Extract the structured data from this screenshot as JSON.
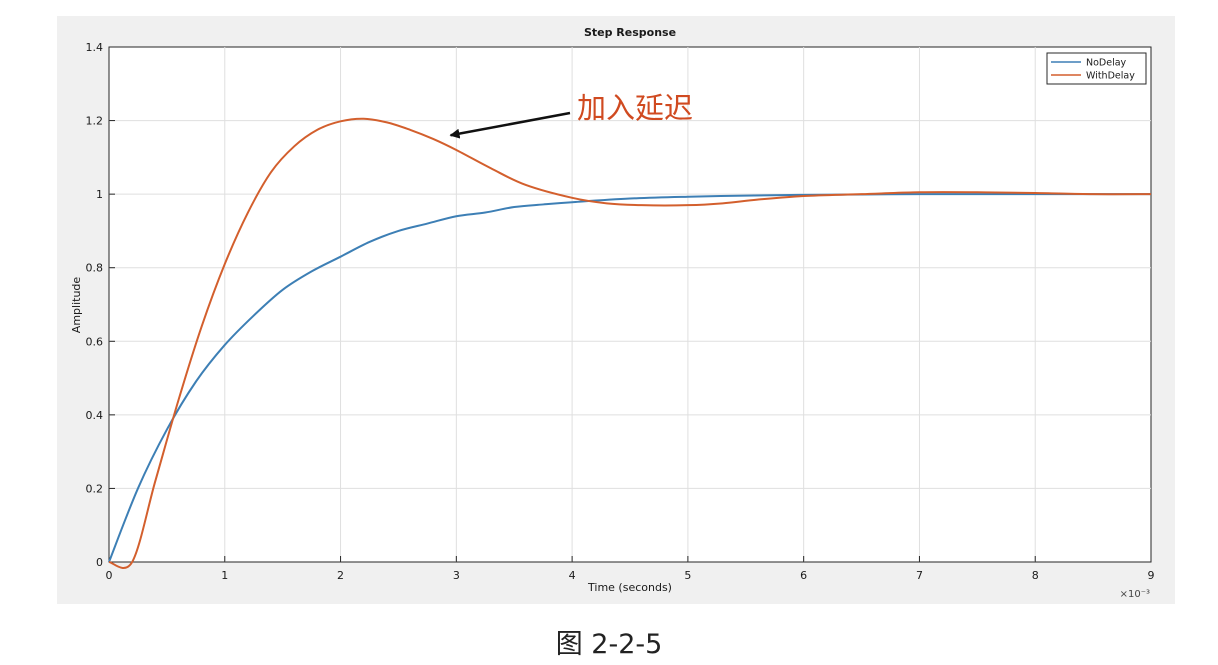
{
  "chart_data": {
    "type": "line",
    "title": "Step Response",
    "xlabel": "Time (seconds)",
    "ylabel": "Amplitude",
    "x_multiplier_label": "×10⁻³",
    "xlim": [
      0,
      9
    ],
    "ylim": [
      0,
      1.4
    ],
    "x_ticks": [
      "0",
      "1",
      "2",
      "3",
      "4",
      "5",
      "6",
      "7",
      "8",
      "9"
    ],
    "y_ticks": [
      "0",
      "0.2",
      "0.4",
      "0.6",
      "0.8",
      "1",
      "1.2",
      "1.4"
    ],
    "grid": true,
    "legend_position": "top-right",
    "series": [
      {
        "name": "NoDelay",
        "color": "#3d7fb5",
        "x": [
          0,
          0.25,
          0.5,
          0.75,
          1.0,
          1.25,
          1.5,
          1.75,
          2.0,
          2.25,
          2.5,
          2.75,
          3.0,
          3.25,
          3.5,
          3.75,
          4.0,
          4.5,
          5.0,
          5.5,
          6.0,
          6.5,
          7.0,
          7.5,
          8.0,
          8.5,
          9.0
        ],
        "y": [
          0,
          0.2,
          0.36,
          0.49,
          0.59,
          0.67,
          0.74,
          0.79,
          0.83,
          0.87,
          0.9,
          0.92,
          0.94,
          0.95,
          0.965,
          0.972,
          0.978,
          0.988,
          0.993,
          0.996,
          0.998,
          0.999,
          1.0,
          1.0,
          1.0,
          1.0,
          1.0
        ]
      },
      {
        "name": "WithDelay",
        "color": "#d35f2d",
        "x": [
          0,
          0.2,
          0.4,
          0.6,
          0.8,
          1.0,
          1.2,
          1.4,
          1.6,
          1.8,
          2.0,
          2.2,
          2.4,
          2.6,
          2.8,
          3.0,
          3.3,
          3.6,
          4.0,
          4.3,
          4.6,
          5.0,
          5.3,
          5.6,
          6.0,
          6.5,
          7.0,
          7.5,
          8.0,
          8.5,
          9.0
        ],
        "y": [
          0,
          0,
          0.22,
          0.44,
          0.64,
          0.81,
          0.95,
          1.06,
          1.13,
          1.175,
          1.198,
          1.205,
          1.195,
          1.175,
          1.15,
          1.12,
          1.07,
          1.025,
          0.99,
          0.975,
          0.97,
          0.97,
          0.975,
          0.985,
          0.995,
          1.0,
          1.005,
          1.005,
          1.003,
          1.0,
          1.0
        ]
      }
    ],
    "annotations": [
      {
        "text": "加入延迟",
        "color": "#d04a20",
        "arrow_to": [
          2.95,
          1.16
        ]
      }
    ]
  },
  "caption": "图 2-2-5"
}
